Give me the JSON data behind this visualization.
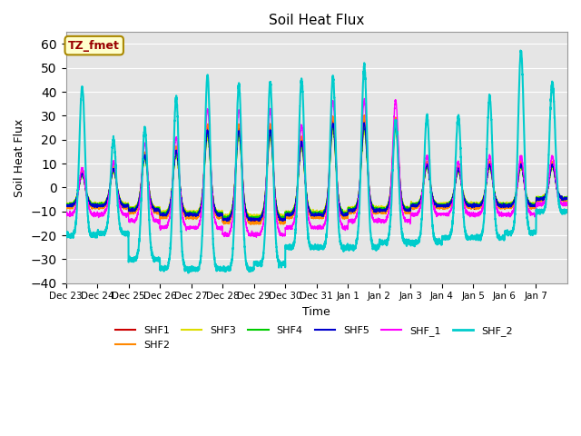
{
  "title": "Soil Heat Flux",
  "xlabel": "Time",
  "ylabel": "Soil Heat Flux",
  "ylim": [
    -40,
    65
  ],
  "yticks": [
    -40,
    -30,
    -20,
    -10,
    0,
    10,
    20,
    30,
    40,
    50,
    60
  ],
  "annotation_text": "TZ_fmet",
  "annotation_bg": "#ffffcc",
  "annotation_border": "#aa8800",
  "annotation_text_color": "#990000",
  "bg_color": "#e5e5e5",
  "series_colors": {
    "SHF1": "#cc0000",
    "SHF2": "#ff8800",
    "SHF3": "#dddd00",
    "SHF4": "#00cc00",
    "SHF5": "#0000cc",
    "SHF_1": "#ff00ff",
    "SHF_2": "#00cccc"
  },
  "n_days": 16,
  "date_labels": [
    "Dec 23",
    "Dec 24",
    "Dec 25",
    "Dec 26",
    "Dec 27",
    "Dec 28",
    "Dec 29",
    "Dec 30",
    "Dec 31",
    "Jan 1",
    "Jan 2",
    "Jan 3",
    "Jan 4",
    "Jan 5",
    "Jan 6",
    "Jan 7"
  ],
  "shf_day_peaks": [
    6,
    8,
    14,
    16,
    25,
    25,
    25,
    20,
    28,
    28,
    28,
    10,
    8,
    10,
    10,
    10
  ],
  "shf_night_base": [
    -8,
    -8,
    -10,
    -12,
    -12,
    -14,
    -14,
    -12,
    -12,
    -10,
    -10,
    -8,
    -8,
    -8,
    -8,
    -5
  ],
  "shf2_day_peaks": [
    42,
    20,
    25,
    38,
    47,
    43,
    44,
    45,
    46,
    51,
    28,
    30,
    30,
    38,
    57,
    44
  ],
  "shf2_night_troughs": [
    -20,
    -19,
    -30,
    -34,
    -34,
    -34,
    -32,
    -25,
    -25,
    -25,
    -23,
    -23,
    -21,
    -21,
    -19,
    -10
  ]
}
